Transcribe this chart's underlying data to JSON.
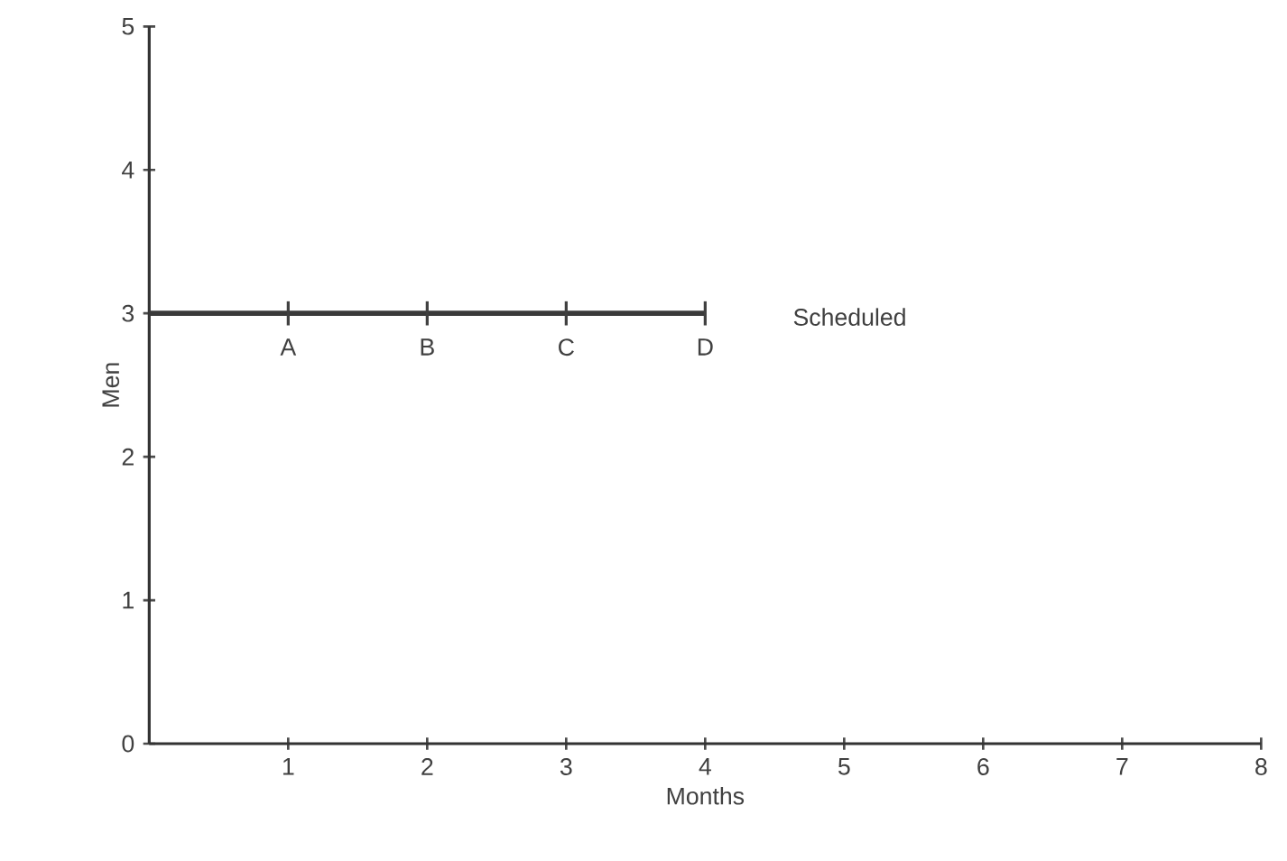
{
  "chart_data": {
    "type": "line",
    "xlabel": "Months",
    "ylabel": "Men",
    "x": [
      0,
      4
    ],
    "series": [
      {
        "color": "#3a3a3a",
        "values": [
          3,
          3
        ]
      }
    ],
    "xlim": [
      0,
      8
    ],
    "ylim": [
      0,
      5
    ],
    "xticks": [
      1,
      2,
      3,
      4,
      5,
      6,
      7,
      8
    ],
    "yticks": [
      0,
      1,
      2,
      3,
      4,
      5
    ],
    "annotations": [
      {
        "text": "A",
        "x": 1,
        "y": 3
      },
      {
        "text": "B",
        "x": 2,
        "y": 3
      },
      {
        "text": "C",
        "x": 3,
        "y": 3
      },
      {
        "text": "D",
        "x": 4,
        "y": 3
      },
      "Scheduled"
    ],
    "grid": false,
    "marker": "none",
    "line_style": "solid"
  }
}
